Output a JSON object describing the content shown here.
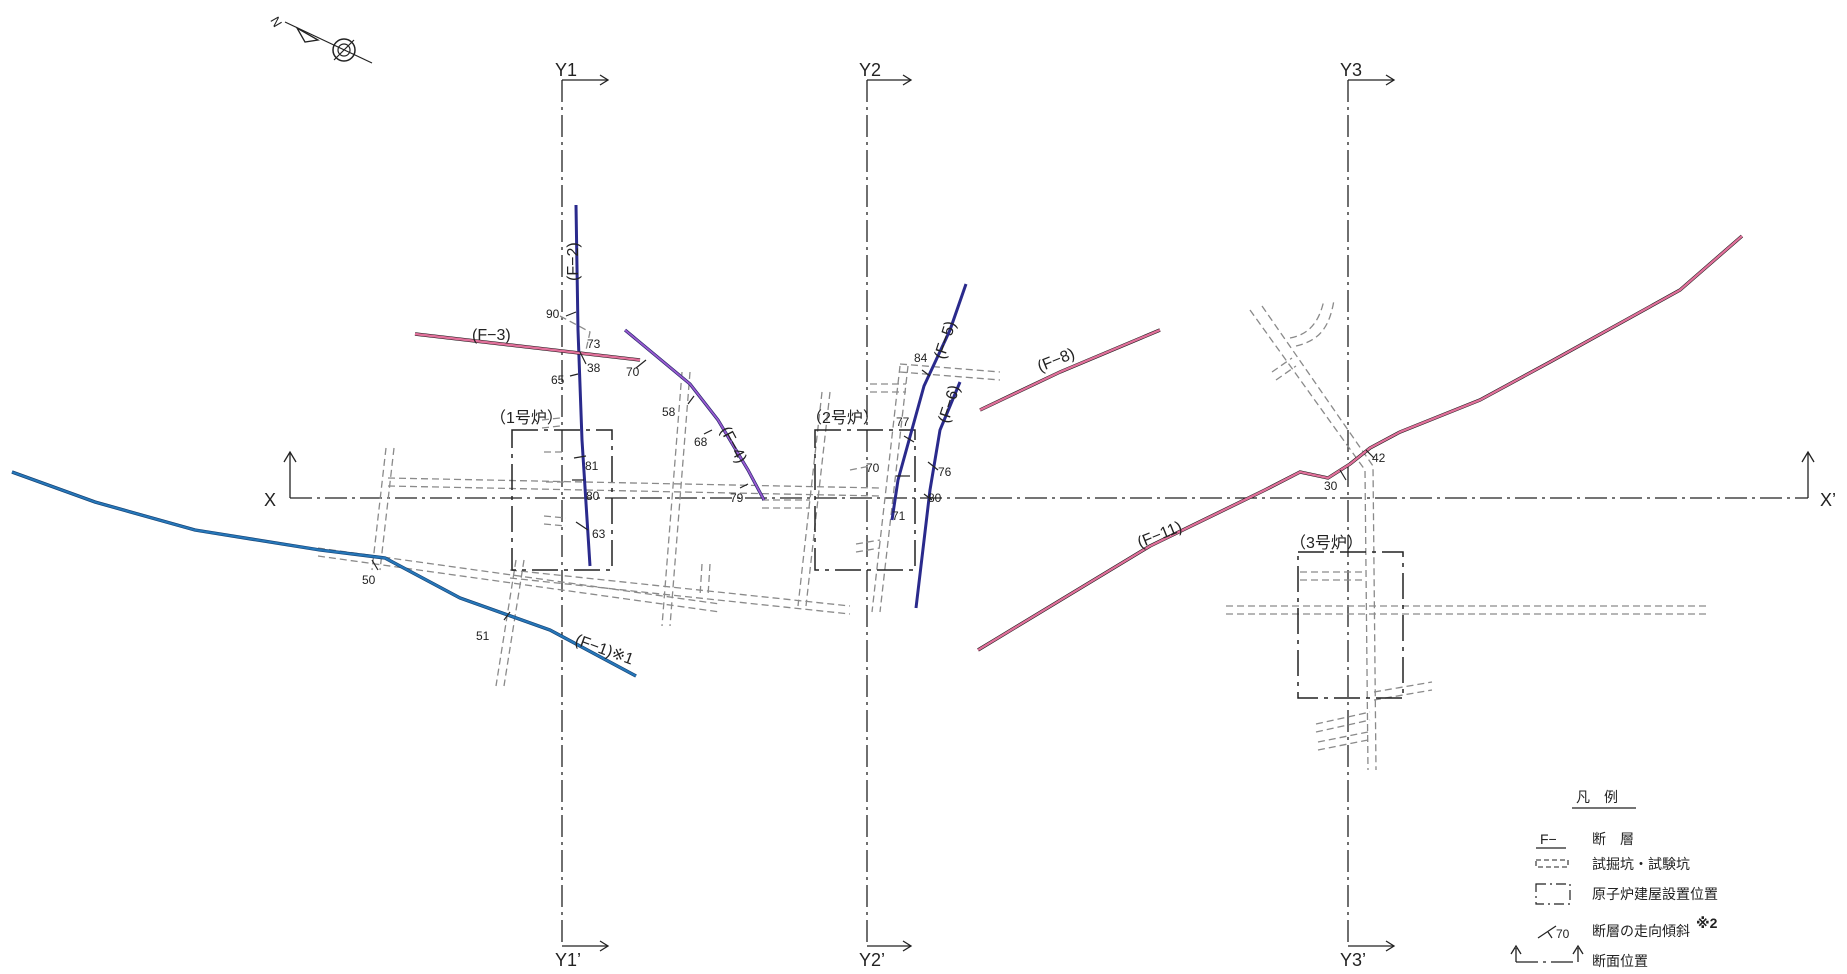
{
  "north_symbol": {
    "letter": "N",
    "icon": "north-arrow-compass-icon"
  },
  "sections": {
    "x_start": "X",
    "x_end": "X’",
    "y1_top": "Y1",
    "y1_bottom": "Y1’",
    "y2_top": "Y2",
    "y2_bottom": "Y2’",
    "y3_top": "Y3",
    "y3_bottom": "Y3’"
  },
  "buildings": {
    "unit1": "（1号炉）",
    "unit2": "（2号炉）",
    "unit3": "（3号炉）"
  },
  "faults": {
    "f1": "(F−1)※1",
    "f2": "(F−2)",
    "f3": "(F−3)",
    "f4": "(F−4)",
    "f5": "(F−5)",
    "f6": "(F−6)",
    "f8": "(F−8)",
    "f11": "(F−11)",
    "colors": {
      "navy": "#2a2a8c",
      "pink": "#e0709a",
      "blue": "#2676b8",
      "purple": "#9a5ad0"
    }
  },
  "dips": {
    "d90": "90",
    "d73": "73",
    "d38": "38",
    "d65": "65",
    "d81": "81",
    "d80a": "80",
    "d63": "63",
    "d70a": "70",
    "d58": "58",
    "d68": "68",
    "d79": "79",
    "d84": "84",
    "d77": "77",
    "d70b": "70",
    "d76": "76",
    "d80b": "80",
    "d71": "71",
    "d50": "50",
    "d51": "51",
    "d42": "42",
    "d30": "30"
  },
  "legend": {
    "title": "凡　例",
    "fault_symbol": "F−",
    "fault": "断　層",
    "tunnel": "試掘坑・試験坑",
    "building": "原子炉建屋設置位置",
    "strike_symbol_value": "70",
    "strike": "断層の走向傾斜",
    "strike_note": "※2",
    "section": "断面位置"
  }
}
